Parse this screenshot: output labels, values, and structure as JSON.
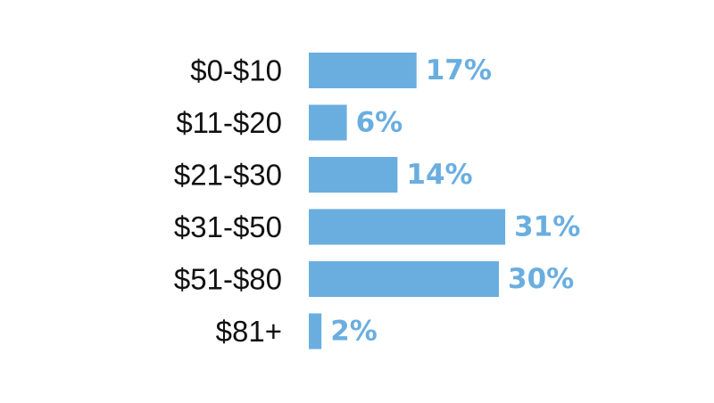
{
  "colors": {
    "bar": "#6aaee0",
    "value_text": "#6aaee0",
    "category_text": "#111111",
    "background": "#ffffff"
  },
  "chart_data": {
    "type": "bar",
    "orientation": "horizontal",
    "categories": [
      "$0-$10",
      "$11-$20",
      "$21-$30",
      "$31-$50",
      "$51-$80",
      "$81+"
    ],
    "values": [
      17,
      6,
      14,
      31,
      30,
      2
    ],
    "value_labels": [
      "17%",
      "6%",
      "14%",
      "31%",
      "30%",
      "2%"
    ],
    "unit": "%",
    "xlim": [
      0,
      31
    ],
    "grid": false,
    "legend": "none"
  }
}
